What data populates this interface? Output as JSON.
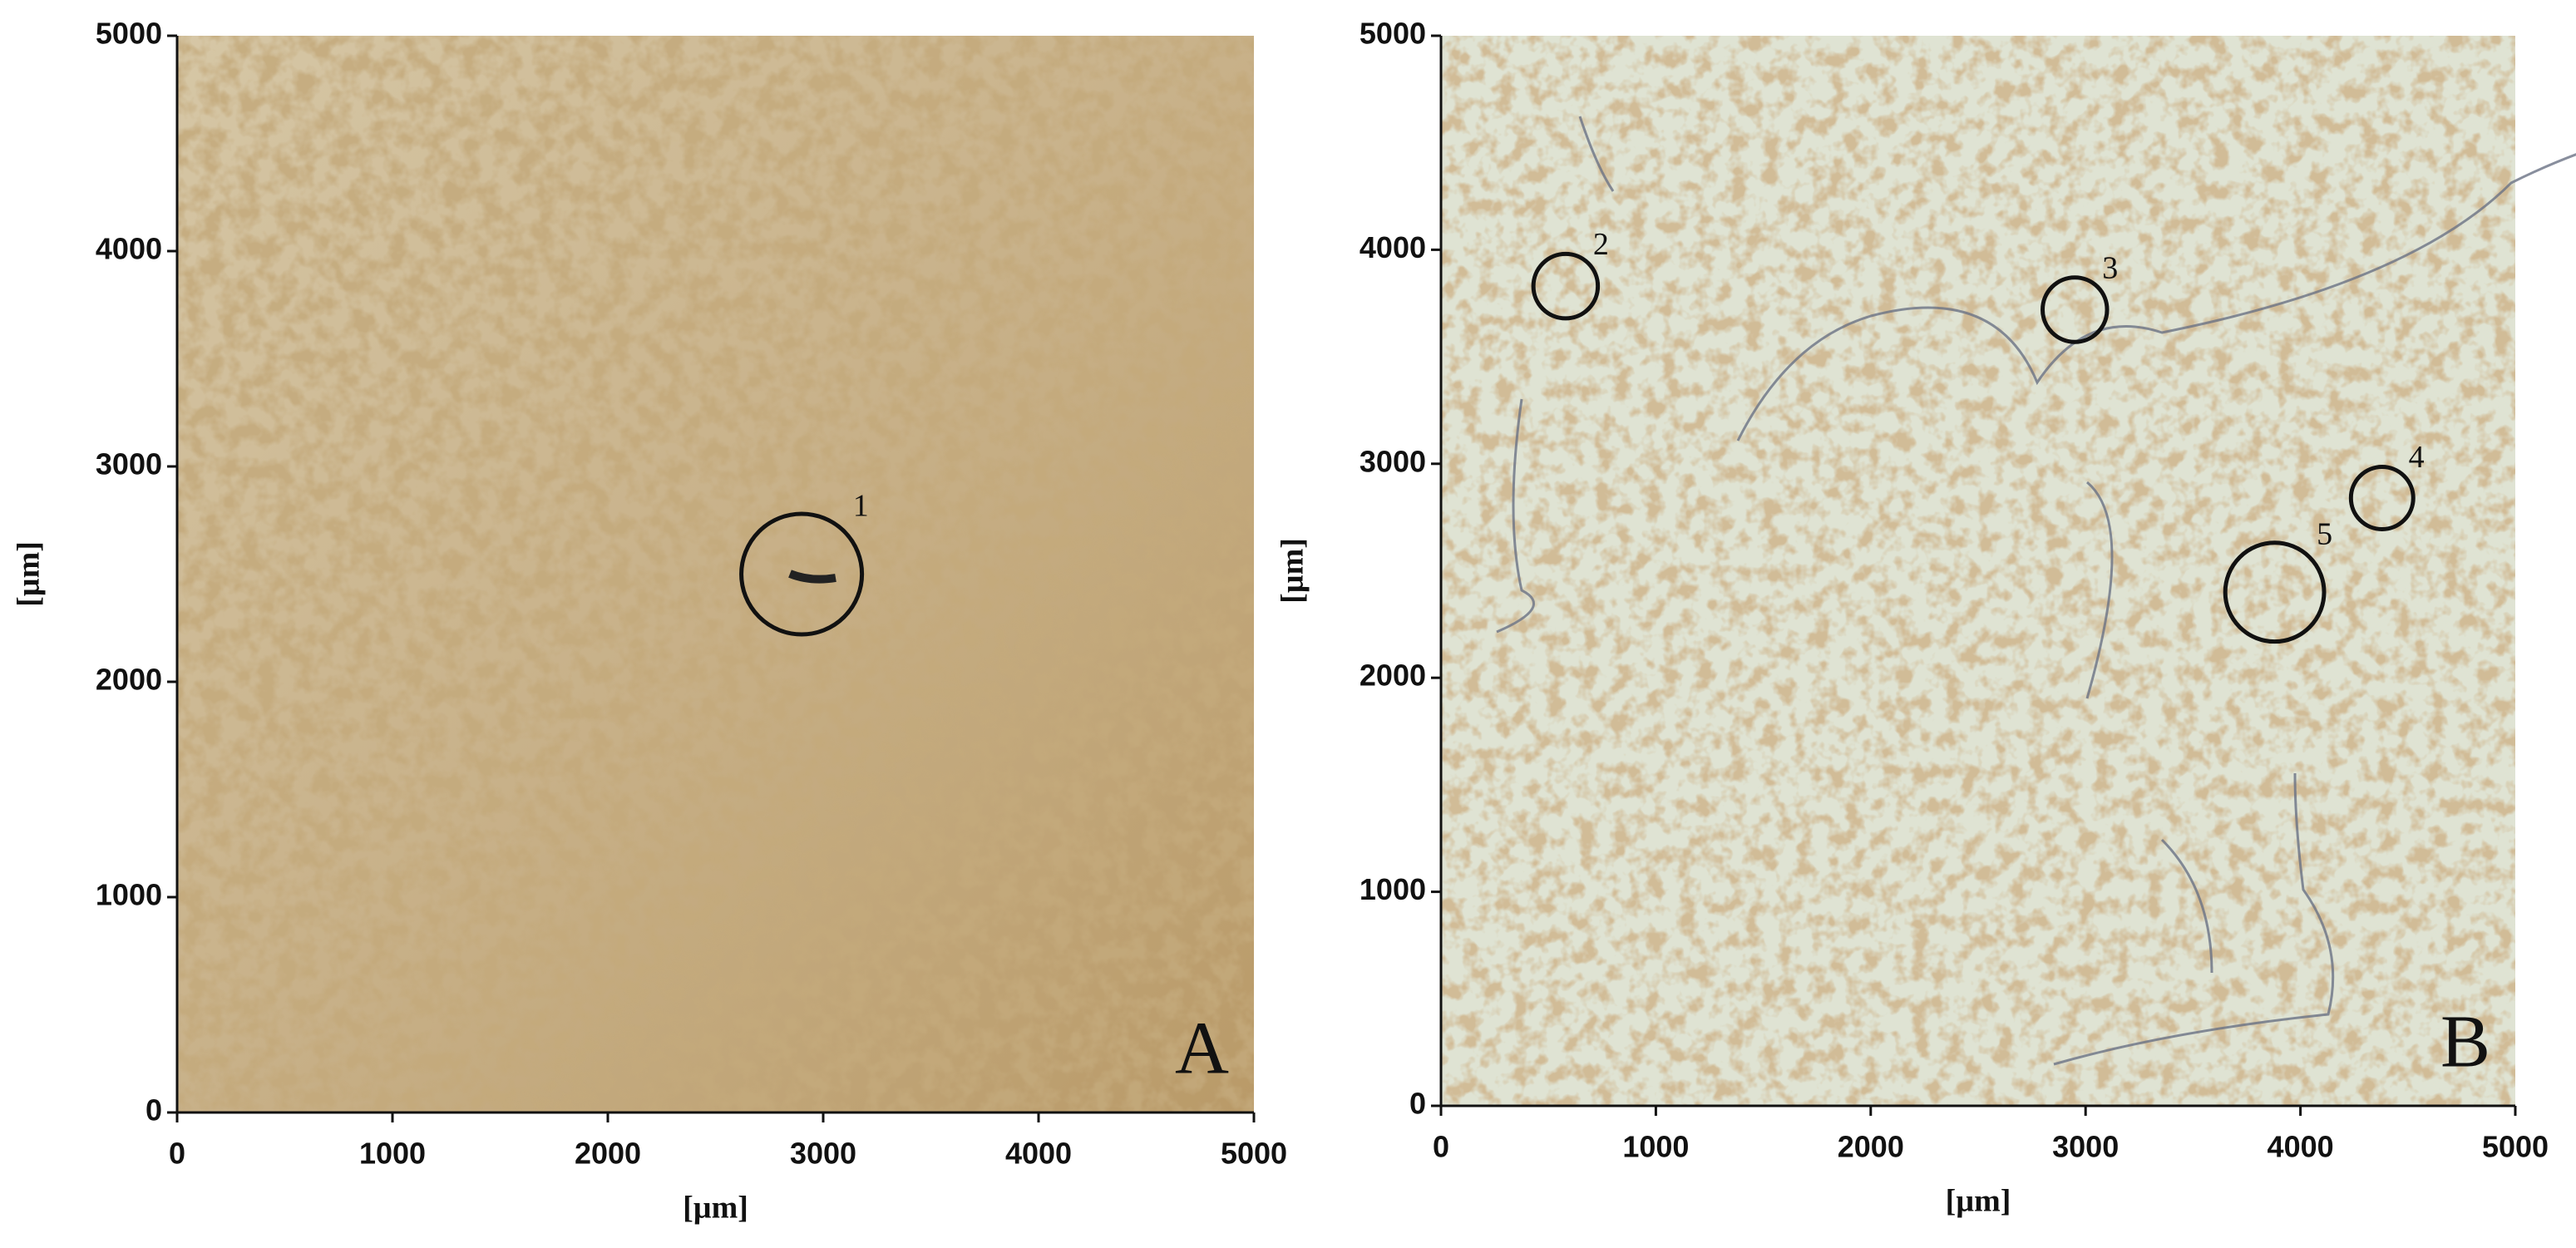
{
  "chart_data": [
    {
      "type": "scatter",
      "panel_label": "A",
      "xlabel": "[µm]",
      "ylabel": "[µm]",
      "xlim": [
        0,
        5000
      ],
      "ylim": [
        0,
        5000
      ],
      "xticks": [
        0,
        1000,
        2000,
        3000,
        4000,
        5000
      ],
      "yticks": [
        0,
        1000,
        2000,
        3000,
        4000,
        5000
      ],
      "x": [
        2900
      ],
      "values": [
        2500
      ],
      "sizes": [
        280
      ],
      "point_labels": [
        "1"
      ],
      "color": "#111111"
    },
    {
      "type": "scatter",
      "panel_label": "B",
      "xlabel": "[µm]",
      "ylabel": "[µm]",
      "xlim": [
        0,
        5000
      ],
      "ylim": [
        0,
        5000
      ],
      "xticks": [
        0,
        1000,
        2000,
        3000,
        4000,
        5000
      ],
      "yticks": [
        0,
        1000,
        2000,
        3000,
        4000,
        5000
      ],
      "x": [
        580,
        2950,
        4380,
        3880
      ],
      "values": [
        3830,
        3720,
        2840,
        2400
      ],
      "sizes": [
        150,
        150,
        145,
        230
      ],
      "point_labels": [
        "2",
        "3",
        "4",
        "5"
      ],
      "color": "#111111"
    }
  ]
}
